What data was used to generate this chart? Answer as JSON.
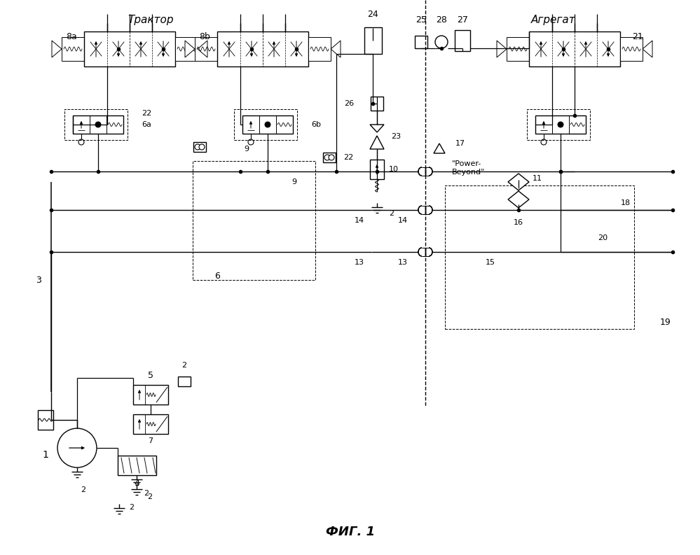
{
  "title": "ФИГ. 1",
  "label_tractor": "Трактор",
  "label_agregat": "Агрегат",
  "label_power_beyond": "\"Power-\nBeyond\"",
  "figsize": [
    9.99,
    7.93
  ],
  "dpi": 100,
  "bg_color": "#ffffff"
}
